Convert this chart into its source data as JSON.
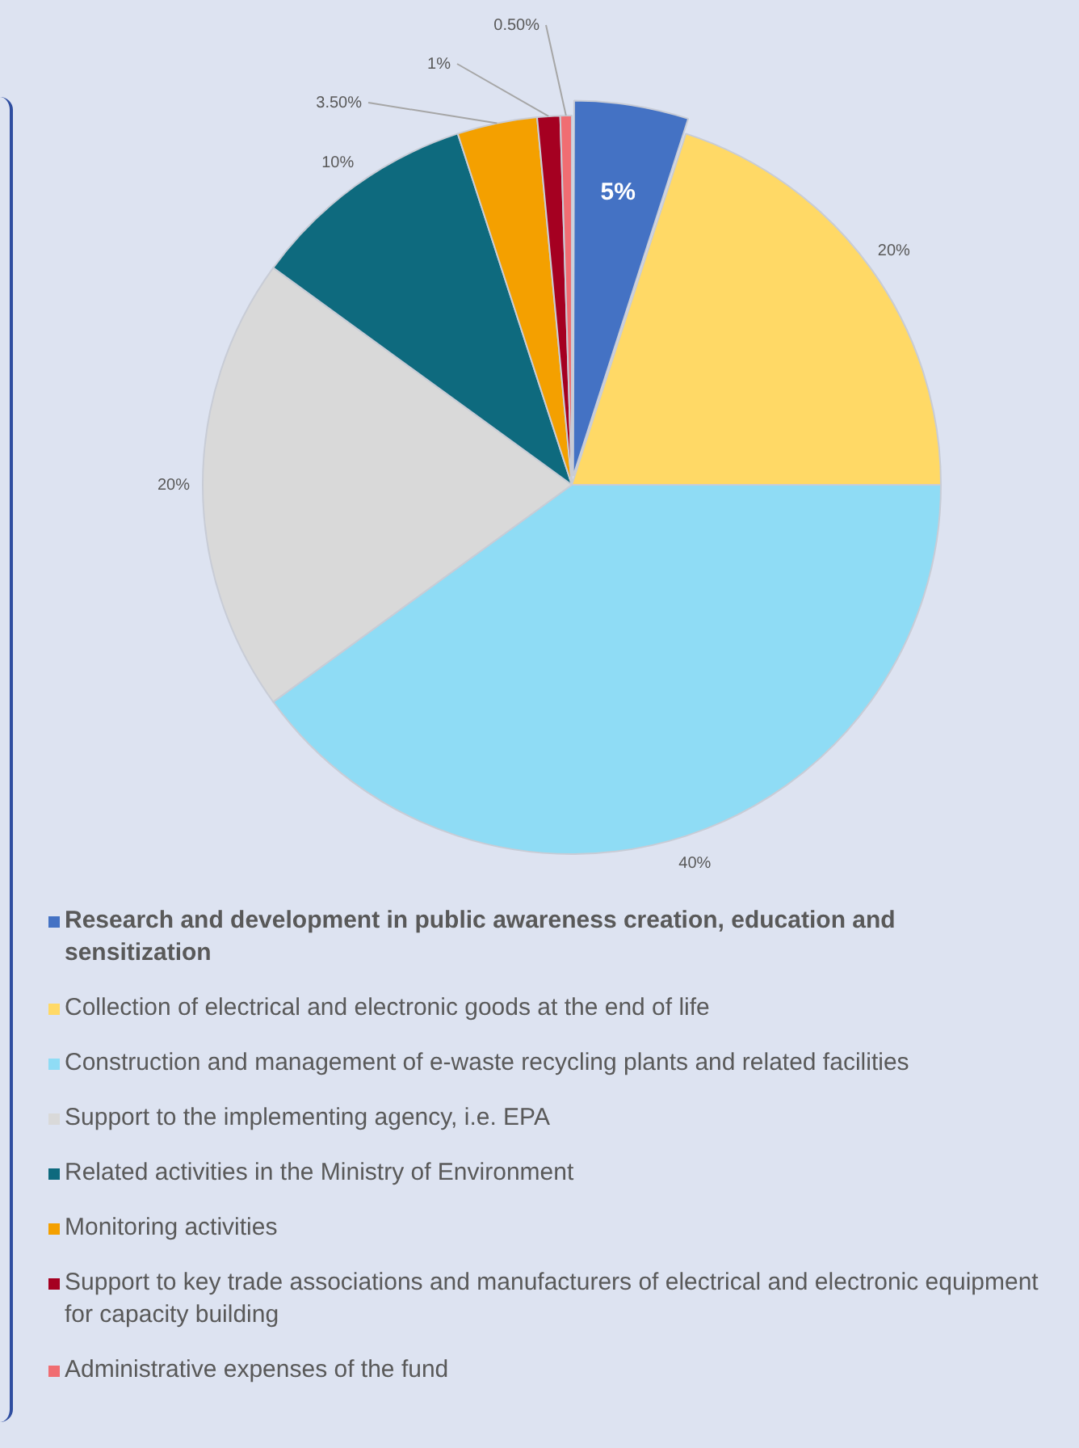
{
  "chart_data": {
    "type": "pie",
    "categories": [
      "Research and development in public awareness creation, education and sensitization",
      "Collection of electrical and electronic goods at the end of life",
      "Construction and management of e-waste recycling plants and related facilities",
      "Support to the implementing agency, i.e. EPA",
      "Related activities in the Ministry of Environment",
      "Monitoring activities",
      "Support to key trade associations and manufacturers of electrical and electronic equipment for capacity building",
      "Administrative expenses of the fund"
    ],
    "values": [
      5,
      20,
      40,
      20,
      10,
      3.5,
      1,
      0.5
    ],
    "value_labels": [
      "5%",
      "20%",
      "40%",
      "20%",
      "10%",
      "3.50%",
      "1%",
      "0.50%"
    ],
    "colors": [
      "#4472c4",
      "#ffd966",
      "#8fdcf5",
      "#d9d9d9",
      "#0e6a7e",
      "#f4a000",
      "#a50021",
      "#f06d72"
    ],
    "legend": "bottom"
  }
}
